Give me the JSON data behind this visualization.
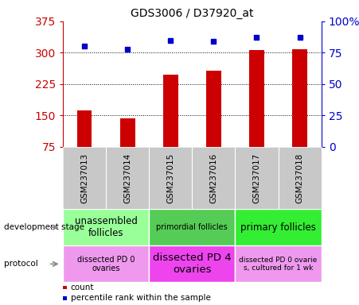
{
  "title": "GDS3006 / D37920_at",
  "samples": [
    "GSM237013",
    "GSM237014",
    "GSM237015",
    "GSM237016",
    "GSM237017",
    "GSM237018"
  ],
  "counts": [
    163,
    143,
    247,
    258,
    307,
    309
  ],
  "percentile_ranks": [
    80,
    78,
    85,
    84,
    87,
    87
  ],
  "ylim_left": [
    75,
    375
  ],
  "ylim_right": [
    0,
    100
  ],
  "yticks_left": [
    75,
    150,
    225,
    300,
    375
  ],
  "yticks_right": [
    0,
    25,
    50,
    75,
    100
  ],
  "bar_color": "#cc0000",
  "dot_color": "#0000cc",
  "dev_stage_groups": [
    {
      "label": "unassembled\nfollicles",
      "cols": [
        0,
        1
      ],
      "color": "#99ff99",
      "fontsize": 8.5
    },
    {
      "label": "primordial follicles",
      "cols": [
        2,
        3
      ],
      "color": "#55cc55",
      "fontsize": 7.0
    },
    {
      "label": "primary follicles",
      "cols": [
        4,
        5
      ],
      "color": "#33ee33",
      "fontsize": 8.5
    }
  ],
  "protocol_groups": [
    {
      "label": "dissected PD 0\novaries",
      "cols": [
        0,
        1
      ],
      "color": "#ee99ee",
      "fontsize": 7.0
    },
    {
      "label": "dissected PD 4\novaries",
      "cols": [
        2,
        3
      ],
      "color": "#ee44ee",
      "fontsize": 9.5
    },
    {
      "label": "dissected PD 0 ovarie\ns, cultured for 1 wk",
      "cols": [
        4,
        5
      ],
      "color": "#ee99ee",
      "fontsize": 6.5
    }
  ],
  "sample_bg": "#c8c8c8",
  "title_fontsize": 10,
  "tick_label_color_left": "#cc0000",
  "tick_label_color_right": "#0000cc",
  "grid_yticks": [
    150,
    225,
    300
  ],
  "left_labels": [
    "development stage",
    "protocol"
  ],
  "legend_items": [
    {
      "color": "#cc0000",
      "label": "count"
    },
    {
      "color": "#0000cc",
      "label": "percentile rank within the sample"
    }
  ]
}
